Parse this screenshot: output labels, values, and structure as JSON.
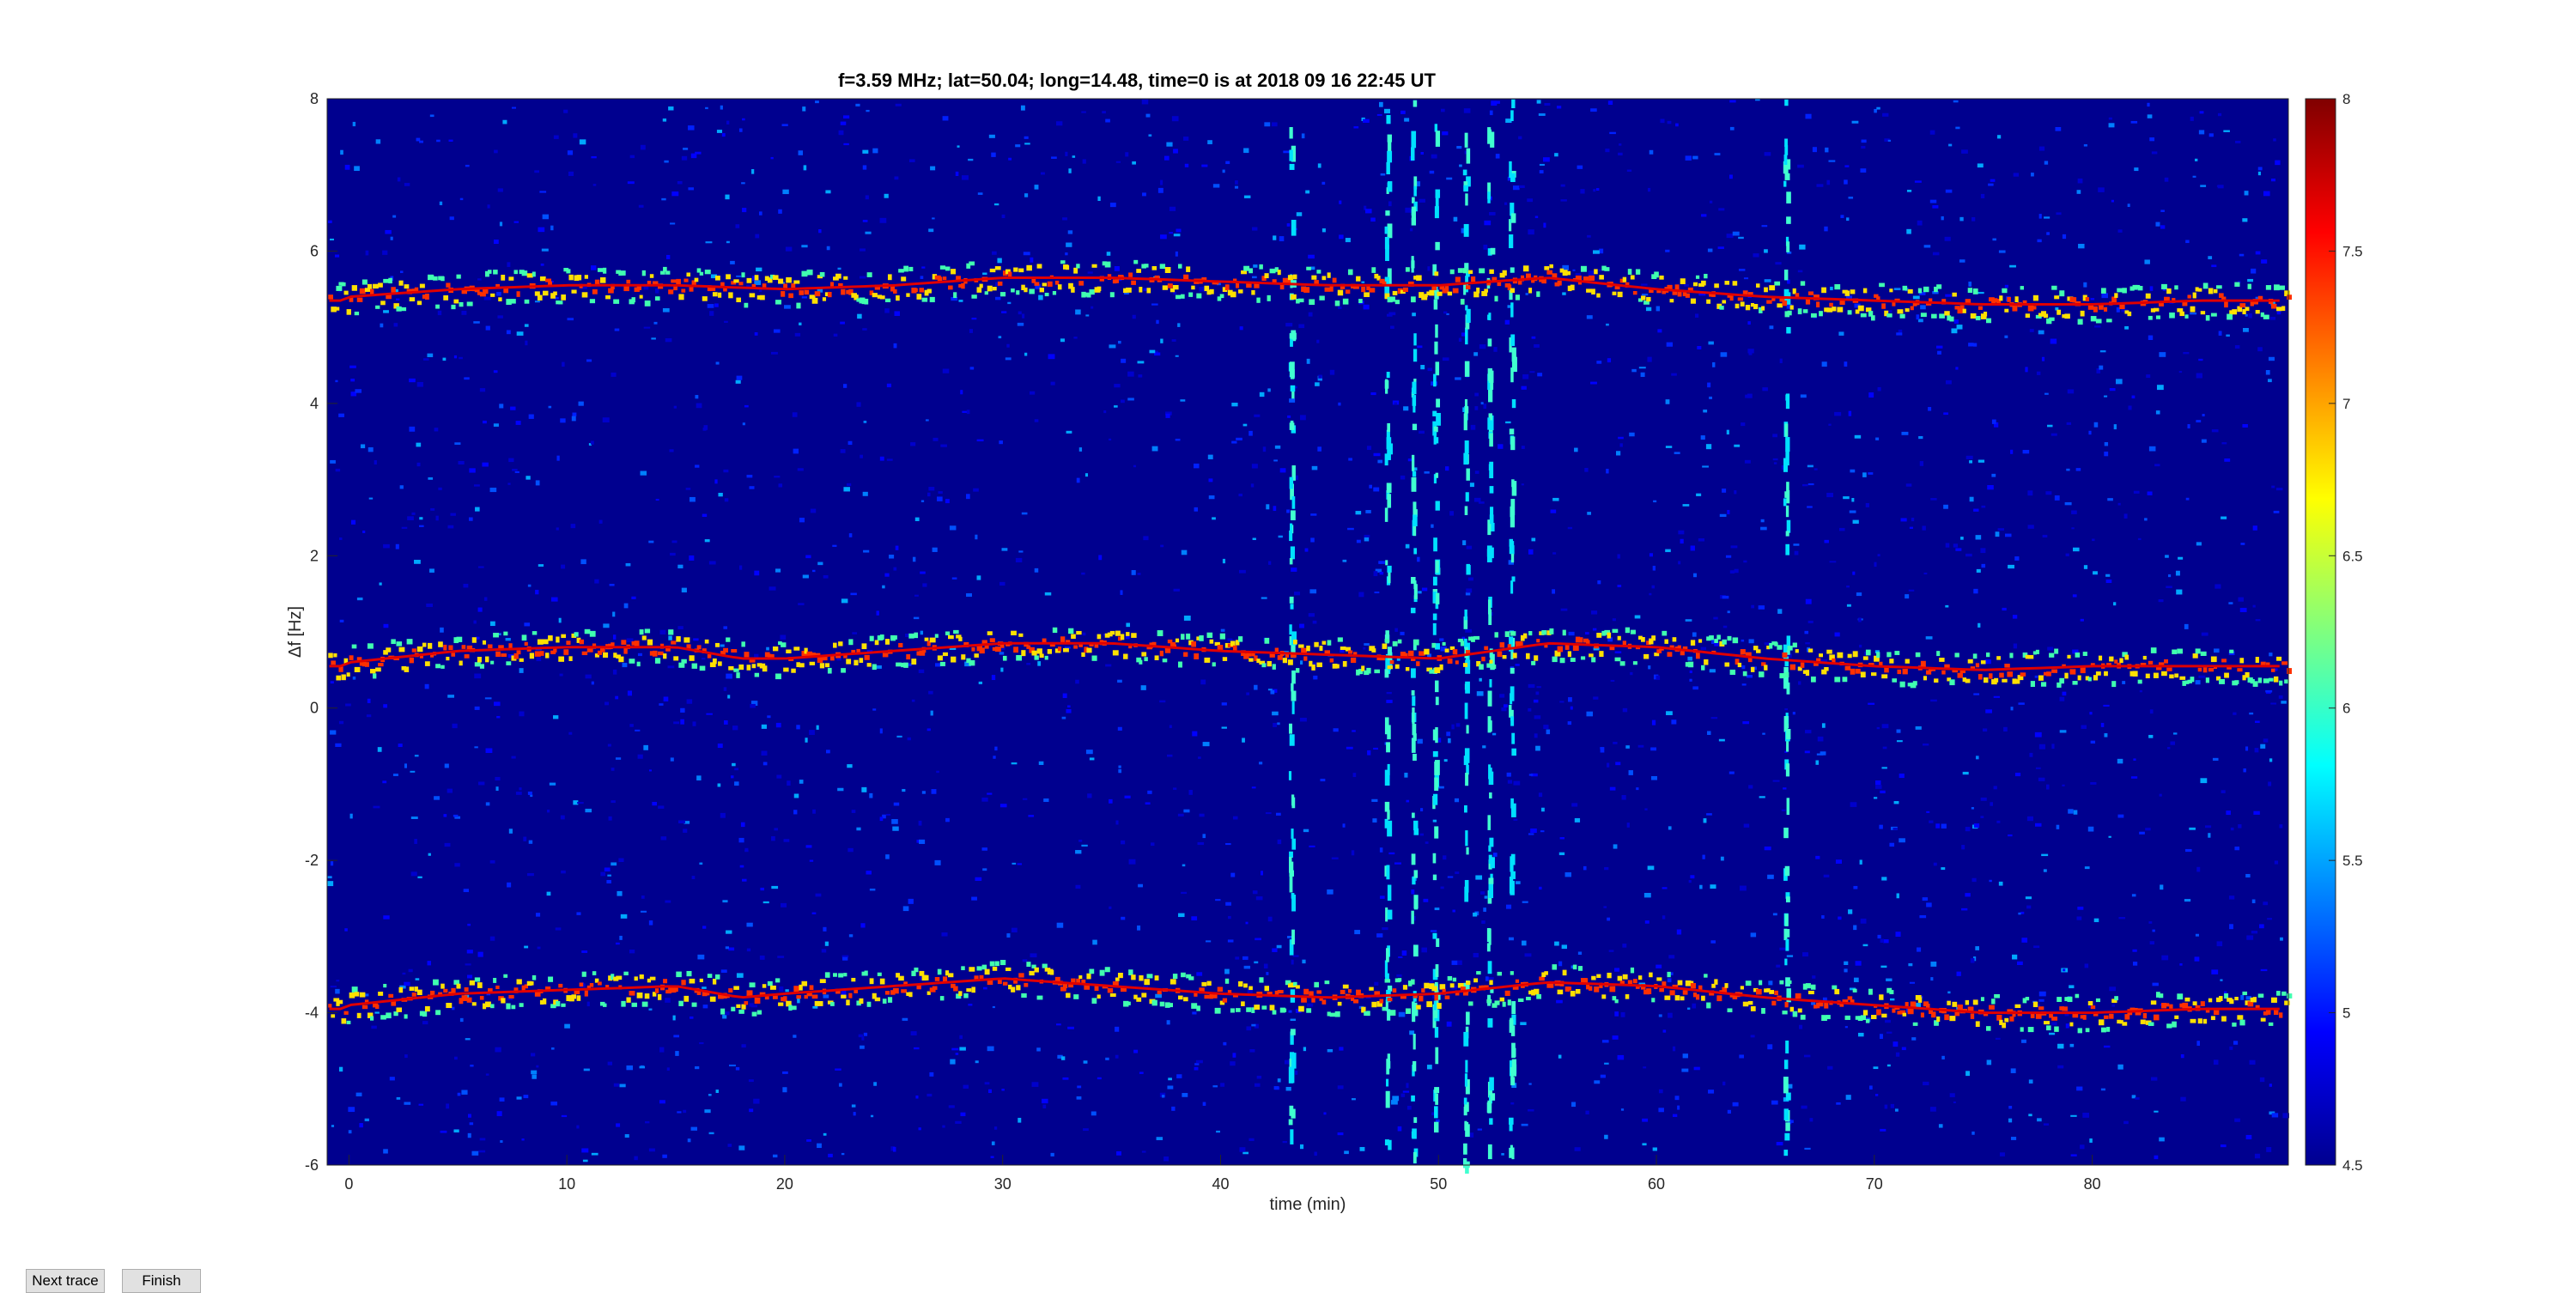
{
  "window": {
    "background": "#ffffff"
  },
  "buttons": {
    "next_label": "Next trace",
    "finish_label": "Finish"
  },
  "chart_data": {
    "type": "heatmap",
    "title": "f=3.59 MHz;  lat=50.04; long=14.48, time=0 is at 2018 09 16 22:45 UT",
    "xlabel": "time (min)",
    "ylabel": "Δf [Hz]",
    "xlim": [
      -1,
      89
    ],
    "ylim": [
      -6,
      8
    ],
    "xticks": [
      0,
      10,
      20,
      30,
      40,
      50,
      60,
      70,
      80
    ],
    "yticks": [
      -6,
      -4,
      -2,
      0,
      2,
      4,
      6,
      8
    ],
    "colorbar": {
      "colormap": "jet",
      "range": [
        4.5,
        8
      ],
      "ticks": [
        "8",
        "7.5",
        "7",
        "6.5",
        "6",
        "5.5",
        "5",
        "4.5"
      ]
    },
    "traces": [
      {
        "x": [
          0,
          5,
          10,
          15,
          20,
          25,
          30,
          35,
          40,
          45,
          50,
          55,
          60,
          65,
          70,
          75,
          80,
          85,
          88
        ],
        "y": [
          5.4,
          5.5,
          5.55,
          5.55,
          5.5,
          5.55,
          5.65,
          5.65,
          5.6,
          5.55,
          5.55,
          5.65,
          5.5,
          5.4,
          5.35,
          5.3,
          5.3,
          5.35,
          5.35
        ]
      },
      {
        "x": [
          0,
          5,
          10,
          15,
          18,
          20,
          25,
          30,
          35,
          40,
          45,
          50,
          55,
          60,
          65,
          70,
          75,
          80,
          85,
          88
        ],
        "y": [
          0.6,
          0.75,
          0.8,
          0.8,
          0.65,
          0.65,
          0.75,
          0.85,
          0.85,
          0.75,
          0.7,
          0.65,
          0.85,
          0.8,
          0.65,
          0.55,
          0.5,
          0.55,
          0.55,
          0.55
        ]
      },
      {
        "x": [
          0,
          5,
          10,
          15,
          18,
          20,
          25,
          30,
          35,
          40,
          45,
          50,
          55,
          60,
          65,
          70,
          75,
          80,
          85,
          88
        ],
        "y": [
          -3.9,
          -3.75,
          -3.7,
          -3.65,
          -3.8,
          -3.75,
          -3.65,
          -3.55,
          -3.65,
          -3.75,
          -3.8,
          -3.75,
          -3.6,
          -3.65,
          -3.8,
          -3.9,
          -4.0,
          -4.0,
          -3.95,
          -3.95
        ]
      }
    ],
    "vertical_streaks_x": [
      43.2,
      47.6,
      48.8,
      49.8,
      51.2,
      52.3,
      53.3,
      65.9
    ]
  }
}
